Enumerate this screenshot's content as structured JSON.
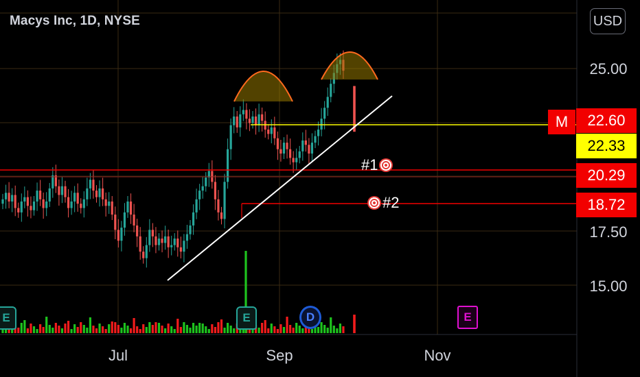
{
  "header": {
    "title": "Macys Inc, 1D, NYSE",
    "currency_button": "USD"
  },
  "chart_data": {
    "type": "candlestick",
    "symbol": "Macys Inc",
    "interval": "1D",
    "exchange": "NYSE",
    "price_axis_ticks": [
      "25.00",
      "17.50",
      "15.00"
    ],
    "time_axis_ticks": [
      "Jul",
      "Sep",
      "Nov"
    ],
    "ylim": [
      12.5,
      27.5
    ],
    "grid": true,
    "price_levels": [
      {
        "label": "22.60",
        "value": 22.6,
        "color": "#f20000",
        "marker": "M"
      },
      {
        "label": "22.33",
        "value": 22.33,
        "color": "#ffff00"
      },
      {
        "label": "20.29",
        "value": 20.29,
        "color": "#f20000"
      },
      {
        "label": "18.72",
        "value": 18.72,
        "color": "#f20000"
      }
    ],
    "targets": [
      {
        "label": "#1"
      },
      {
        "label": "#2"
      }
    ],
    "events": [
      {
        "letter": "E",
        "type": "earnings"
      },
      {
        "letter": "E",
        "type": "earnings"
      },
      {
        "letter": "D",
        "type": "dividend"
      },
      {
        "letter": "E",
        "type": "earnings"
      }
    ],
    "colors": {
      "up": "#26a69a",
      "down": "#ef5350",
      "volume_up": "#1ec31e",
      "volume_down": "#f21c1c",
      "trendline": "#ffffff",
      "yellow_line": "#ffff00",
      "red_line": "#f20000",
      "arc": "#ff6a1e",
      "grid": "#3a2a12"
    }
  }
}
